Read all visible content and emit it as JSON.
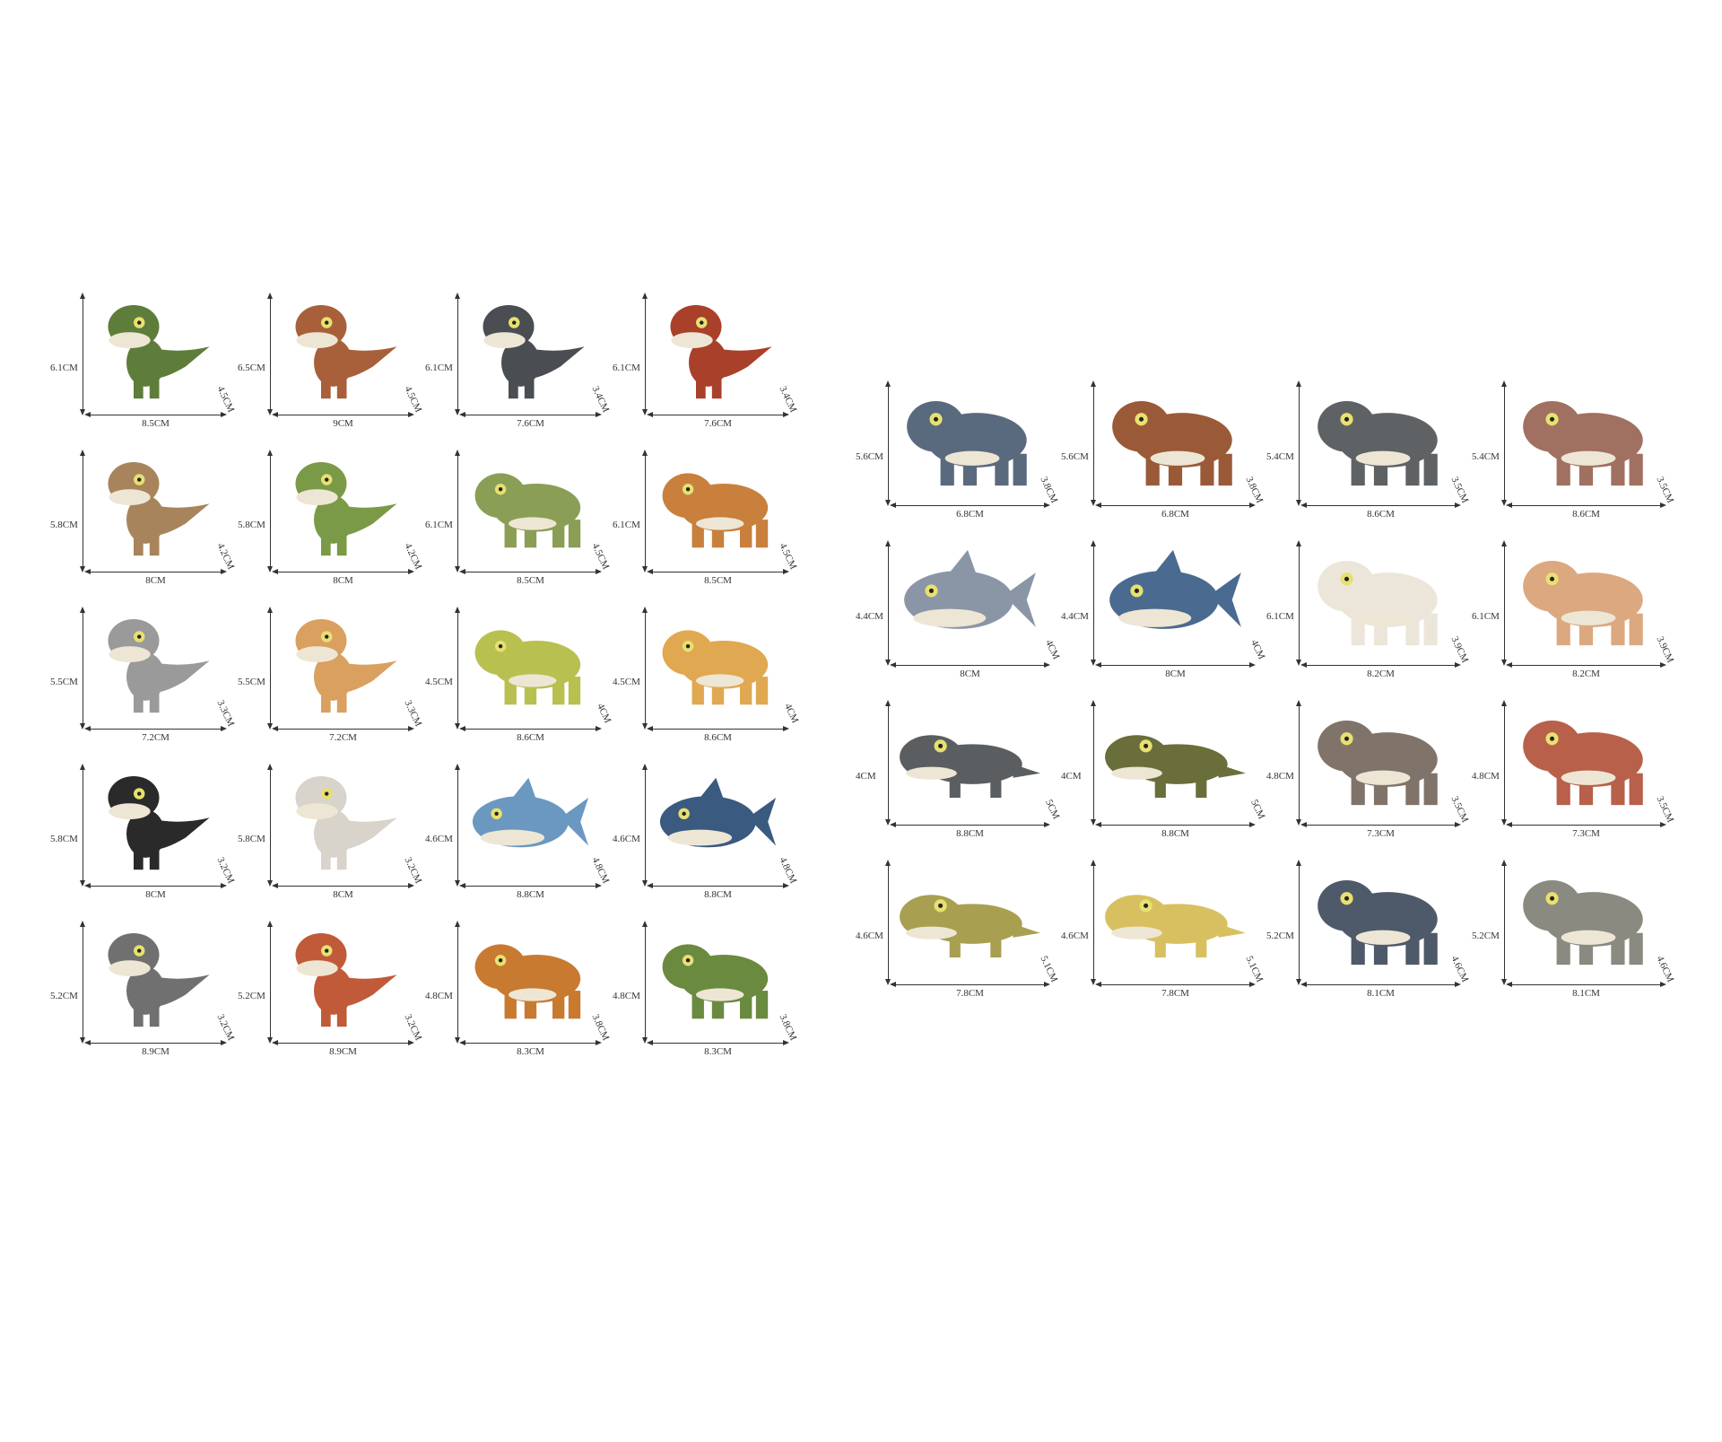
{
  "left_set": [
    {
      "height": "6.1CM",
      "width": "8.5CM",
      "depth": "4.5CM",
      "color": "#5e7d3a",
      "kind": "trex"
    },
    {
      "height": "6.5CM",
      "width": "9CM",
      "depth": "4.5CM",
      "color": "#a8603a",
      "kind": "trex"
    },
    {
      "height": "6.1CM",
      "width": "7.6CM",
      "depth": "3.4CM",
      "color": "#4a4e52",
      "kind": "trex"
    },
    {
      "height": "6.1CM",
      "width": "7.6CM",
      "depth": "3.4CM",
      "color": "#a8402a",
      "kind": "trex"
    },
    {
      "height": "5.8CM",
      "width": "8CM",
      "depth": "4.2CM",
      "color": "#a8845c",
      "kind": "trex"
    },
    {
      "height": "5.8CM",
      "width": "8CM",
      "depth": "4.2CM",
      "color": "#7a9a48",
      "kind": "trex"
    },
    {
      "height": "6.1CM",
      "width": "8.5CM",
      "depth": "4.5CM",
      "color": "#8a9e55",
      "kind": "quad"
    },
    {
      "height": "6.1CM",
      "width": "8.5CM",
      "depth": "4.5CM",
      "color": "#c8803c",
      "kind": "quad"
    },
    {
      "height": "5.5CM",
      "width": "7.2CM",
      "depth": "3.3CM",
      "color": "#9a9a9a",
      "kind": "trex"
    },
    {
      "height": "5.5CM",
      "width": "7.2CM",
      "depth": "3.3CM",
      "color": "#daa060",
      "kind": "trex"
    },
    {
      "height": "4.5CM",
      "width": "8.6CM",
      "depth": "4CM",
      "color": "#b8c050",
      "kind": "quad"
    },
    {
      "height": "4.5CM",
      "width": "8.6CM",
      "depth": "4CM",
      "color": "#e0a850",
      "kind": "quad"
    },
    {
      "height": "5.8CM",
      "width": "8CM",
      "depth": "3.2CM",
      "color": "#2a2a2a",
      "kind": "trex"
    },
    {
      "height": "5.8CM",
      "width": "8CM",
      "depth": "3.2CM",
      "color": "#d8d4cc",
      "kind": "trex"
    },
    {
      "height": "4.6CM",
      "width": "8.8CM",
      "depth": "4.8CM",
      "color": "#6a98c0",
      "kind": "fish"
    },
    {
      "height": "4.6CM",
      "width": "8.8CM",
      "depth": "4.8CM",
      "color": "#3a5a80",
      "kind": "fish"
    },
    {
      "height": "5.2CM",
      "width": "8.9CM",
      "depth": "3.2CM",
      "color": "#707070",
      "kind": "trex"
    },
    {
      "height": "5.2CM",
      "width": "8.9CM",
      "depth": "3.2CM",
      "color": "#c05a38",
      "kind": "trex"
    },
    {
      "height": "4.8CM",
      "width": "8.3CM",
      "depth": "3.8CM",
      "color": "#c87a30",
      "kind": "quad"
    },
    {
      "height": "4.8CM",
      "width": "8.3CM",
      "depth": "3.8CM",
      "color": "#6a8a40",
      "kind": "quad"
    }
  ],
  "right_set": [
    {
      "height": "5.6CM",
      "width": "6.8CM",
      "depth": "3.8CM",
      "color": "#5a6a7e",
      "kind": "quad"
    },
    {
      "height": "5.6CM",
      "width": "6.8CM",
      "depth": "3.8CM",
      "color": "#9a5a38",
      "kind": "quad"
    },
    {
      "height": "5.4CM",
      "width": "8.6CM",
      "depth": "3.5CM",
      "color": "#5e6264",
      "kind": "quad"
    },
    {
      "height": "5.4CM",
      "width": "8.6CM",
      "depth": "3.5CM",
      "color": "#a07060",
      "kind": "quad"
    },
    {
      "height": "4.4CM",
      "width": "8CM",
      "depth": "4CM",
      "color": "#8a96a6",
      "kind": "fish"
    },
    {
      "height": "4.4CM",
      "width": "8CM",
      "depth": "4CM",
      "color": "#4a6a90",
      "kind": "fish"
    },
    {
      "height": "6.1CM",
      "width": "8.2CM",
      "depth": "3.9CM",
      "color": "#ece6da",
      "kind": "quad"
    },
    {
      "height": "6.1CM",
      "width": "8.2CM",
      "depth": "3.9CM",
      "color": "#dca880",
      "kind": "quad"
    },
    {
      "height": "4CM",
      "width": "8.8CM",
      "depth": "5CM",
      "color": "#5a5e60",
      "kind": "croc"
    },
    {
      "height": "4CM",
      "width": "8.8CM",
      "depth": "5CM",
      "color": "#6a6e3a",
      "kind": "croc"
    },
    {
      "height": "4.8CM",
      "width": "7.3CM",
      "depth": "3.5CM",
      "color": "#80746a",
      "kind": "quad"
    },
    {
      "height": "4.8CM",
      "width": "7.3CM",
      "depth": "3.5CM",
      "color": "#b8604a",
      "kind": "quad"
    },
    {
      "height": "4.6CM",
      "width": "7.8CM",
      "depth": "5.1CM",
      "color": "#a8a050",
      "kind": "croc"
    },
    {
      "height": "4.6CM",
      "width": "7.8CM",
      "depth": "5.1CM",
      "color": "#d8c060",
      "kind": "croc"
    },
    {
      "height": "5.2CM",
      "width": "8.1CM",
      "depth": "4.6CM",
      "color": "#4e5a6a",
      "kind": "quad"
    },
    {
      "height": "5.2CM",
      "width": "8.1CM",
      "depth": "4.6CM",
      "color": "#8a8a80",
      "kind": "quad"
    }
  ]
}
